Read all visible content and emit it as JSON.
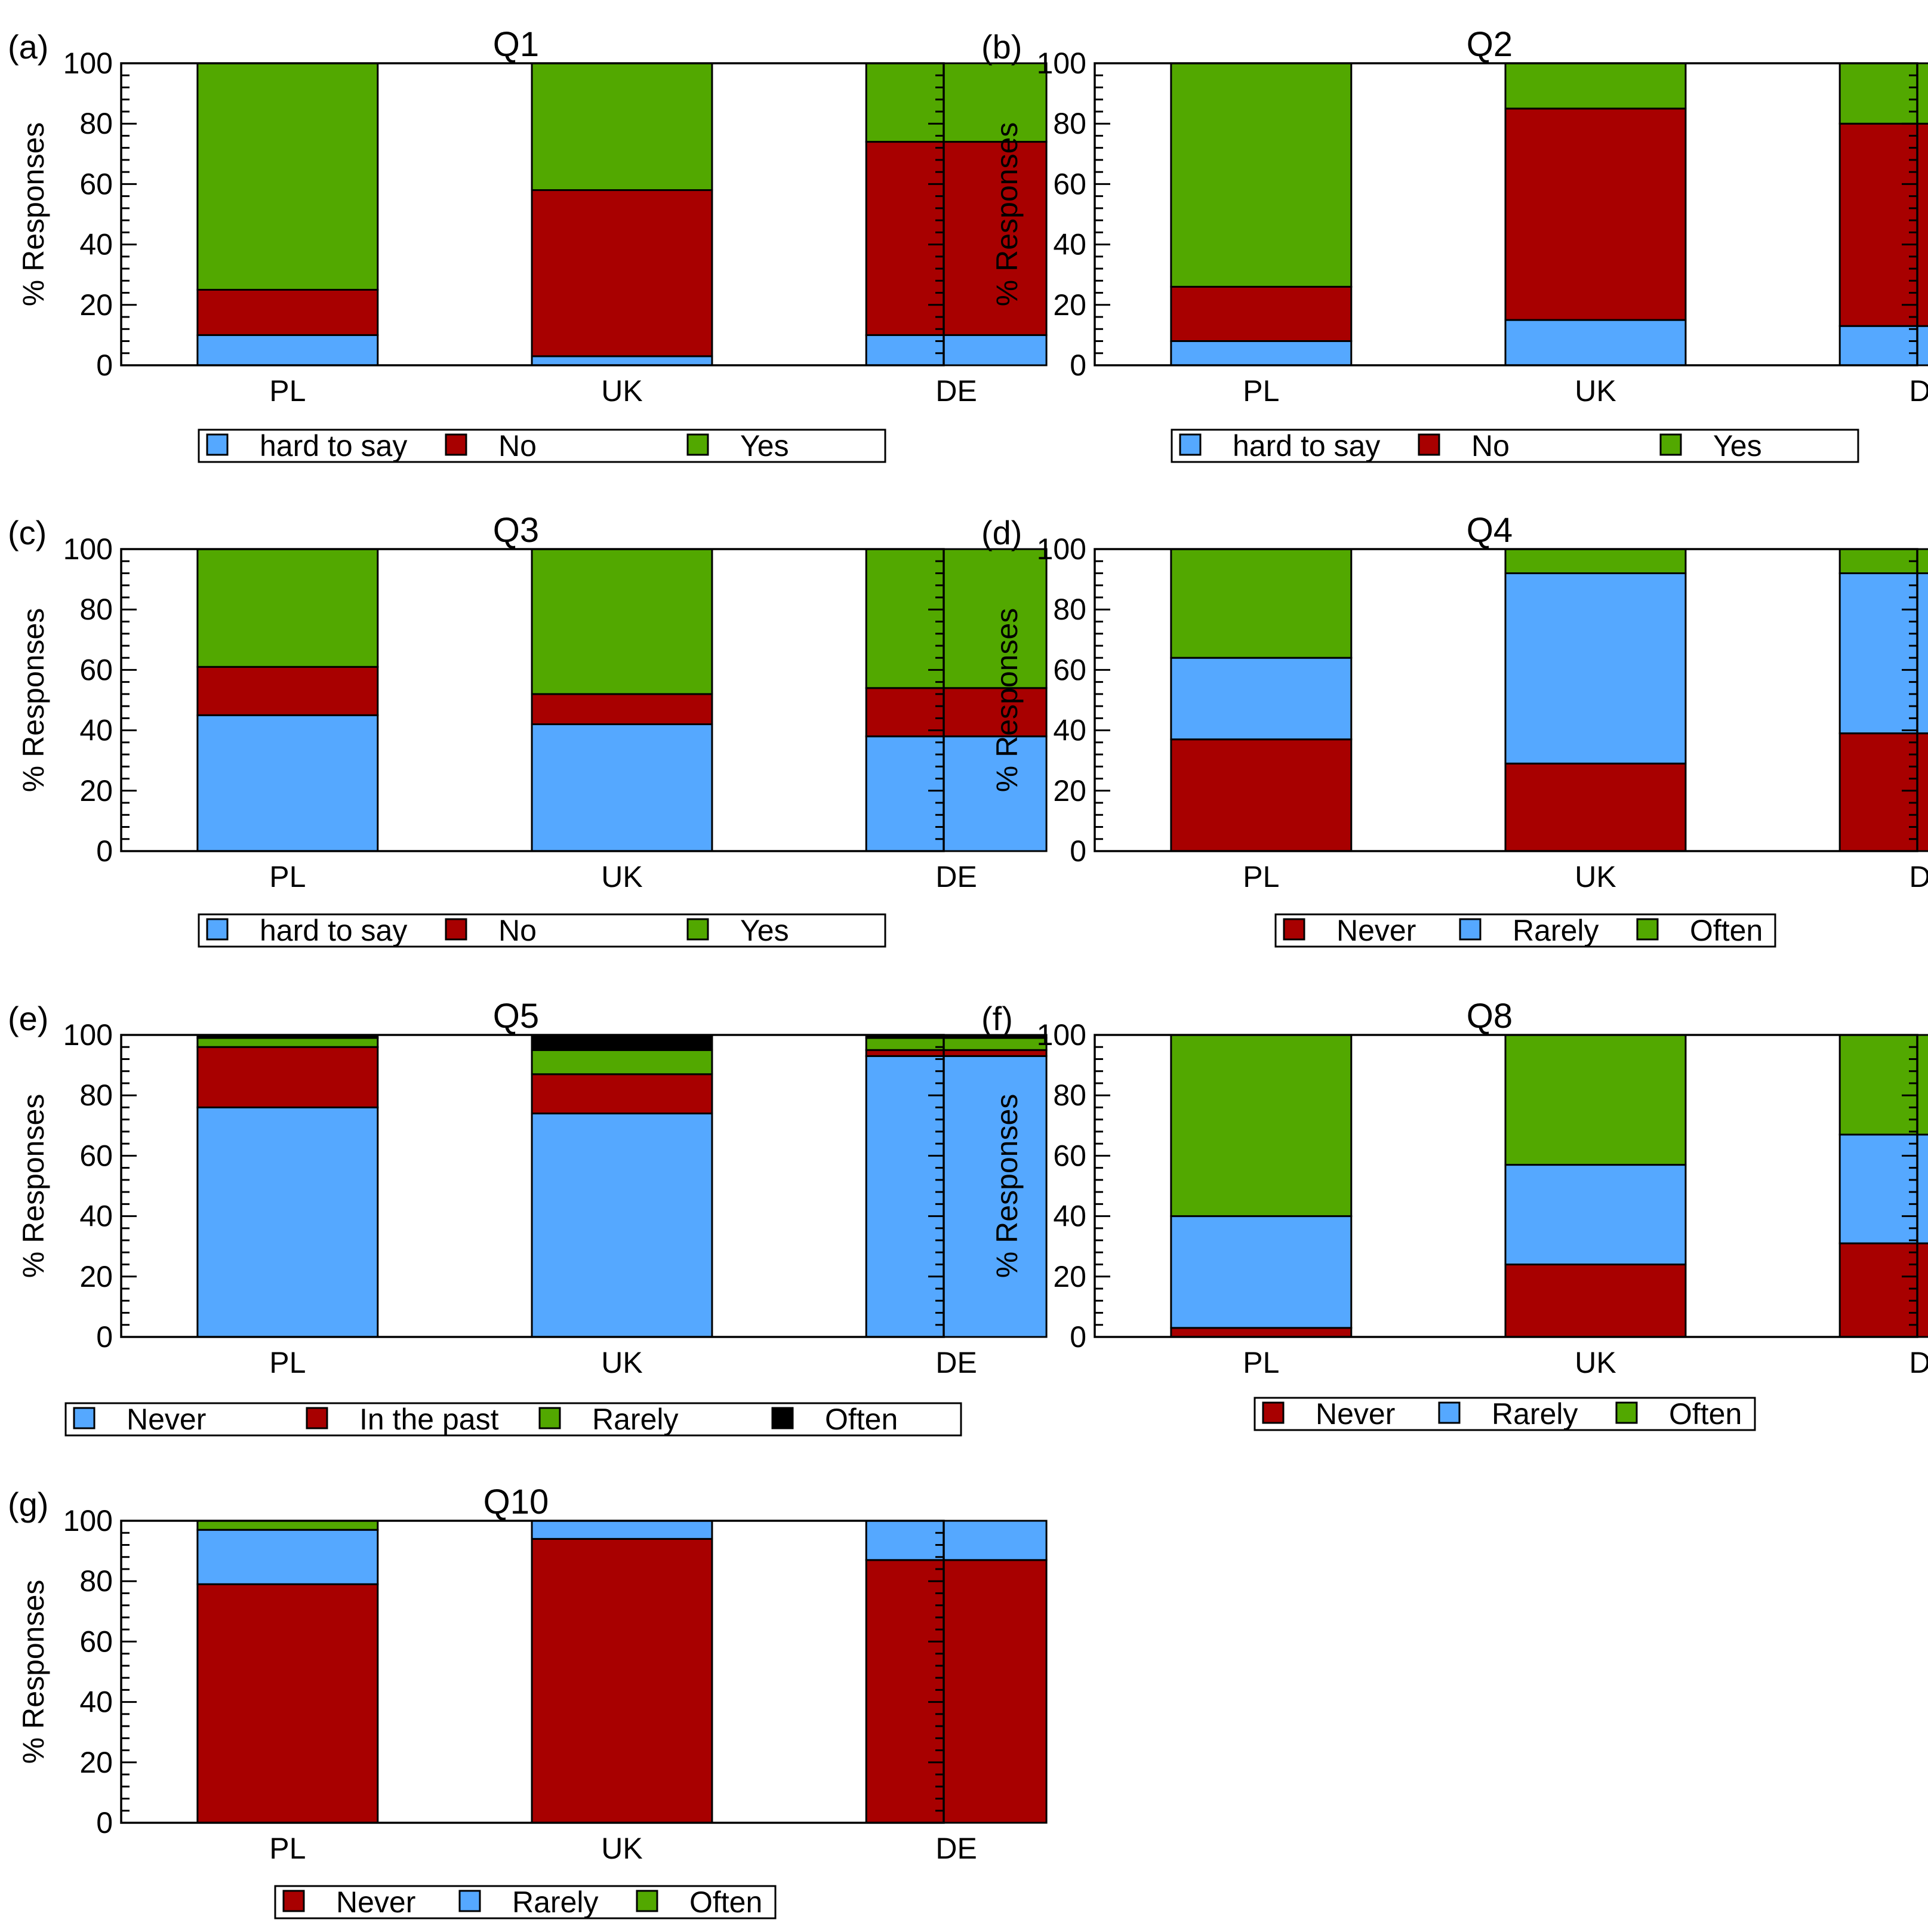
{
  "colors": {
    "hard to say": "#55a8ff",
    "Never": "#55a8ff",
    "Rarely": "#55a8ff",
    "No": "#a80000",
    "In the past": "#a80000",
    "Yes": "#52a800",
    "Often": "#52a800",
    "Often_black": "#000000"
  },
  "chart_data": [
    {
      "panel": "(a)",
      "title": "Q1",
      "type": "bar",
      "stacked": true,
      "categories": [
        "PL",
        "UK",
        "DE"
      ],
      "ylabel": "% Responses",
      "ylim": [
        0,
        100
      ],
      "yticks": [
        0,
        20,
        40,
        60,
        80,
        100
      ],
      "series": [
        {
          "name": "hard to say",
          "color": "#55a8ff",
          "values": [
            10,
            3,
            10
          ]
        },
        {
          "name": "No",
          "color": "#a80000",
          "values": [
            15,
            55,
            64
          ]
        },
        {
          "name": "Yes",
          "color": "#52a800",
          "values": [
            75,
            42,
            26
          ]
        }
      ],
      "legend": [
        "hard to say",
        "No",
        "Yes"
      ]
    },
    {
      "panel": "(b)",
      "title": "Q2",
      "type": "bar",
      "stacked": true,
      "categories": [
        "PL",
        "UK",
        "DE"
      ],
      "ylabel": "% Responses",
      "ylim": [
        0,
        100
      ],
      "yticks": [
        0,
        20,
        40,
        60,
        80,
        100
      ],
      "series": [
        {
          "name": "hard to say",
          "color": "#55a8ff",
          "values": [
            8,
            15,
            13
          ]
        },
        {
          "name": "No",
          "color": "#a80000",
          "values": [
            18,
            70,
            67
          ]
        },
        {
          "name": "Yes",
          "color": "#52a800",
          "values": [
            74,
            15,
            20
          ]
        }
      ],
      "legend": [
        "hard to say",
        "No",
        "Yes"
      ]
    },
    {
      "panel": "(c)",
      "title": "Q3",
      "type": "bar",
      "stacked": true,
      "categories": [
        "PL",
        "UK",
        "DE"
      ],
      "ylabel": "% Responses",
      "ylim": [
        0,
        100
      ],
      "yticks": [
        0,
        20,
        40,
        60,
        80,
        100
      ],
      "series": [
        {
          "name": "hard to say",
          "color": "#55a8ff",
          "values": [
            45,
            42,
            38
          ]
        },
        {
          "name": "No",
          "color": "#a80000",
          "values": [
            16,
            10,
            16
          ]
        },
        {
          "name": "Yes",
          "color": "#52a800",
          "values": [
            39,
            48,
            46
          ]
        }
      ],
      "legend": [
        "hard to say",
        "No",
        "Yes"
      ]
    },
    {
      "panel": "(d)",
      "title": "Q4",
      "type": "bar",
      "stacked": true,
      "categories": [
        "PL",
        "UK",
        "DE"
      ],
      "ylabel": "% Responses",
      "ylim": [
        0,
        100
      ],
      "yticks": [
        0,
        20,
        40,
        60,
        80,
        100
      ],
      "series": [
        {
          "name": "Never",
          "color": "#a80000",
          "values": [
            37,
            29,
            39
          ]
        },
        {
          "name": "Rarely",
          "color": "#55a8ff",
          "values": [
            27,
            63,
            53
          ]
        },
        {
          "name": "Often",
          "color": "#52a800",
          "values": [
            36,
            8,
            8
          ]
        }
      ],
      "legend": [
        "Never",
        "Rarely",
        "Often"
      ]
    },
    {
      "panel": "(e)",
      "title": "Q5",
      "type": "bar",
      "stacked": true,
      "categories": [
        "PL",
        "UK",
        "DE"
      ],
      "ylabel": "% Responses",
      "ylim": [
        0,
        100
      ],
      "yticks": [
        0,
        20,
        40,
        60,
        80,
        100
      ],
      "series": [
        {
          "name": "Never",
          "color": "#55a8ff",
          "values": [
            76,
            74,
            93
          ]
        },
        {
          "name": "In the past",
          "color": "#a80000",
          "values": [
            20,
            13,
            2
          ]
        },
        {
          "name": "Rarely",
          "color": "#52a800",
          "values": [
            3,
            8,
            4
          ]
        },
        {
          "name": "Often",
          "color": "#000000",
          "values": [
            1,
            5,
            1
          ]
        }
      ],
      "legend": [
        "Never",
        "In the past",
        "Rarely",
        "Often"
      ]
    },
    {
      "panel": "(f)",
      "title": "Q8",
      "type": "bar",
      "stacked": true,
      "categories": [
        "PL",
        "UK",
        "DE"
      ],
      "ylabel": "% Responses",
      "ylim": [
        0,
        100
      ],
      "yticks": [
        0,
        20,
        40,
        60,
        80,
        100
      ],
      "series": [
        {
          "name": "Never",
          "color": "#a80000",
          "values": [
            3,
            24,
            31
          ]
        },
        {
          "name": "Rarely",
          "color": "#55a8ff",
          "values": [
            37,
            33,
            36
          ]
        },
        {
          "name": "Often",
          "color": "#52a800",
          "values": [
            60,
            43,
            33
          ]
        }
      ],
      "legend": [
        "Never",
        "Rarely",
        "Often"
      ]
    },
    {
      "panel": "(g)",
      "title": "Q10",
      "type": "bar",
      "stacked": true,
      "categories": [
        "PL",
        "UK",
        "DE"
      ],
      "ylabel": "% Responses",
      "ylim": [
        0,
        100
      ],
      "yticks": [
        0,
        20,
        40,
        60,
        80,
        100
      ],
      "series": [
        {
          "name": "Never",
          "color": "#a80000",
          "values": [
            79,
            94,
            87
          ]
        },
        {
          "name": "Rarely",
          "color": "#55a8ff",
          "values": [
            18,
            6,
            13
          ]
        },
        {
          "name": "Often",
          "color": "#52a800",
          "values": [
            3,
            0,
            0
          ]
        }
      ],
      "legend": [
        "Never",
        "Rarely",
        "Often"
      ]
    }
  ]
}
